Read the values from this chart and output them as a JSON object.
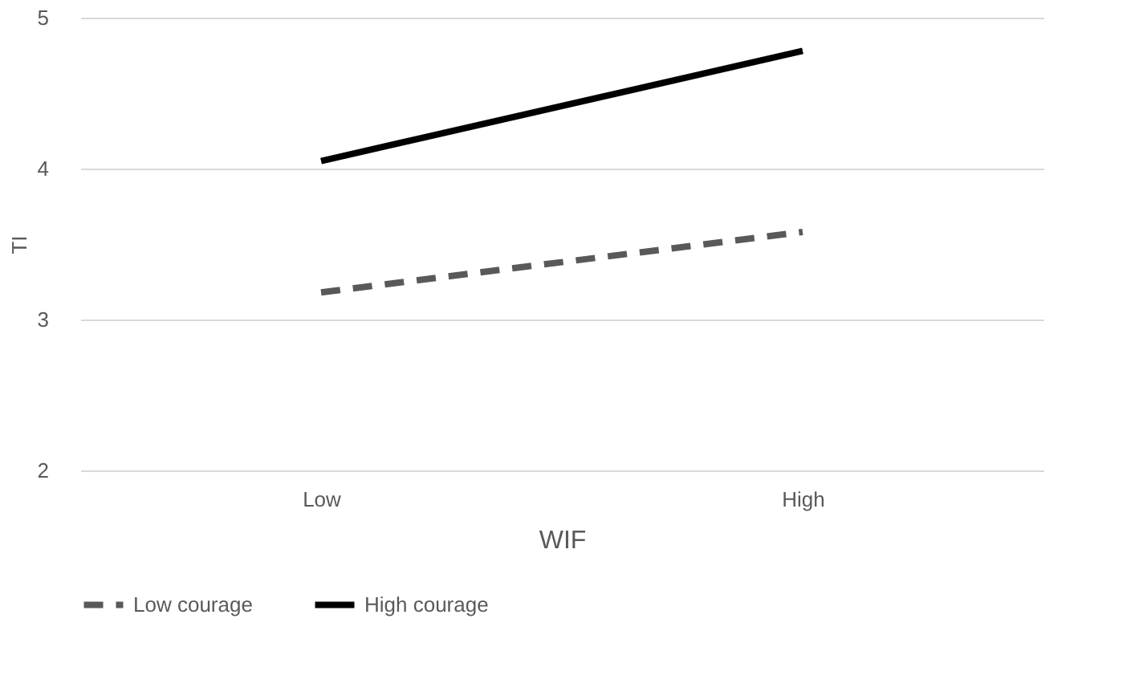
{
  "chart_data": {
    "type": "line",
    "xlabel": "WIF",
    "ylabel": "TI",
    "categories": [
      "Low",
      "High"
    ],
    "series": [
      {
        "name": "Low courage",
        "color": "#595959",
        "values": [
          3.18,
          3.58
        ],
        "line_style": "dashed"
      },
      {
        "name": "High courage",
        "color": "#000000",
        "values": [
          4.05,
          4.78
        ],
        "line_style": "solid"
      }
    ],
    "ylim": [
      2,
      5
    ],
    "yticks": [
      2,
      3,
      4,
      5
    ],
    "grid": "y",
    "legend": "bottom",
    "marker": "none"
  }
}
